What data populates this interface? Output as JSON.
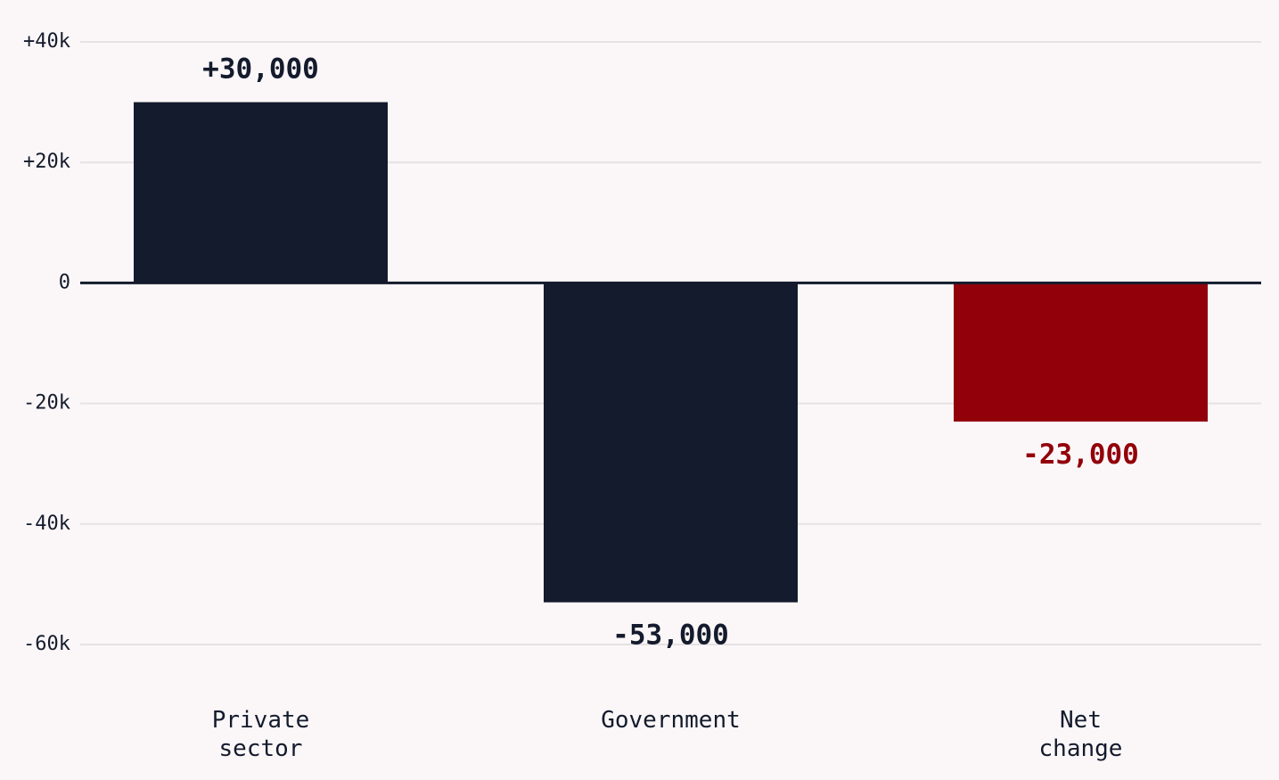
{
  "chart_data": {
    "type": "bar",
    "categories": [
      [
        "Private",
        "sector"
      ],
      [
        "Government"
      ],
      [
        "Net",
        "change"
      ]
    ],
    "values": [
      30000,
      -53000,
      -23000
    ],
    "data_labels": [
      "+30,000",
      "-53,000",
      "-23,000"
    ],
    "colors": [
      "#141b2d",
      "#141b2d",
      "#92000a"
    ],
    "label_colors": [
      "#141b2d",
      "#141b2d",
      "#92000a"
    ],
    "ylim": [
      -60000,
      40000
    ],
    "yticks": [
      40000,
      20000,
      0,
      -20000,
      -40000,
      -60000
    ],
    "ytick_labels": [
      "+40k",
      "+20k",
      "0",
      "-20k",
      "-40k",
      "-60k"
    ],
    "grid": true,
    "title": "",
    "xlabel": "",
    "ylabel": ""
  }
}
